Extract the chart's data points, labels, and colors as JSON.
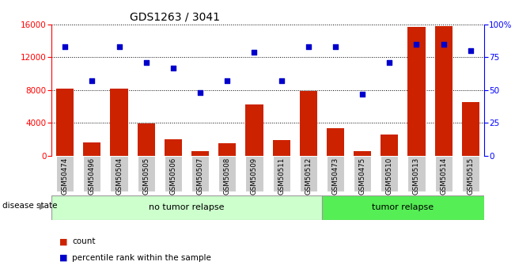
{
  "title": "GDS1263 / 3041",
  "categories": [
    "GSM50474",
    "GSM50496",
    "GSM50504",
    "GSM50505",
    "GSM50506",
    "GSM50507",
    "GSM50508",
    "GSM50509",
    "GSM50511",
    "GSM50512",
    "GSM50473",
    "GSM50475",
    "GSM50510",
    "GSM50513",
    "GSM50514",
    "GSM50515"
  ],
  "bar_values": [
    8200,
    1600,
    8200,
    3900,
    2000,
    500,
    1500,
    6200,
    1900,
    7900,
    3300,
    500,
    2600,
    15700,
    15800,
    6500
  ],
  "dot_values_pct": [
    83,
    57,
    83,
    71,
    67,
    48,
    57,
    79,
    57,
    83,
    83,
    47,
    71,
    85,
    85,
    80
  ],
  "bar_color": "#cc2200",
  "dot_color": "#0000cc",
  "group1_label": "no tumor relapse",
  "group2_label": "tumor relapse",
  "group1_count": 10,
  "group2_count": 6,
  "group1_color": "#ccffcc",
  "group2_color": "#55ee55",
  "ylim_left": [
    0,
    16000
  ],
  "ylim_right": [
    0,
    100
  ],
  "yticks_left": [
    0,
    4000,
    8000,
    12000,
    16000
  ],
  "yticks_right": [
    0,
    25,
    50,
    75,
    100
  ],
  "yticklabels_right": [
    "0",
    "25",
    "50",
    "75",
    "100%"
  ],
  "disease_state_label": "disease state",
  "legend_count_label": "count",
  "legend_pct_label": "percentile rank within the sample",
  "background_color": "#ffffff",
  "label_bg_color": "#cccccc"
}
